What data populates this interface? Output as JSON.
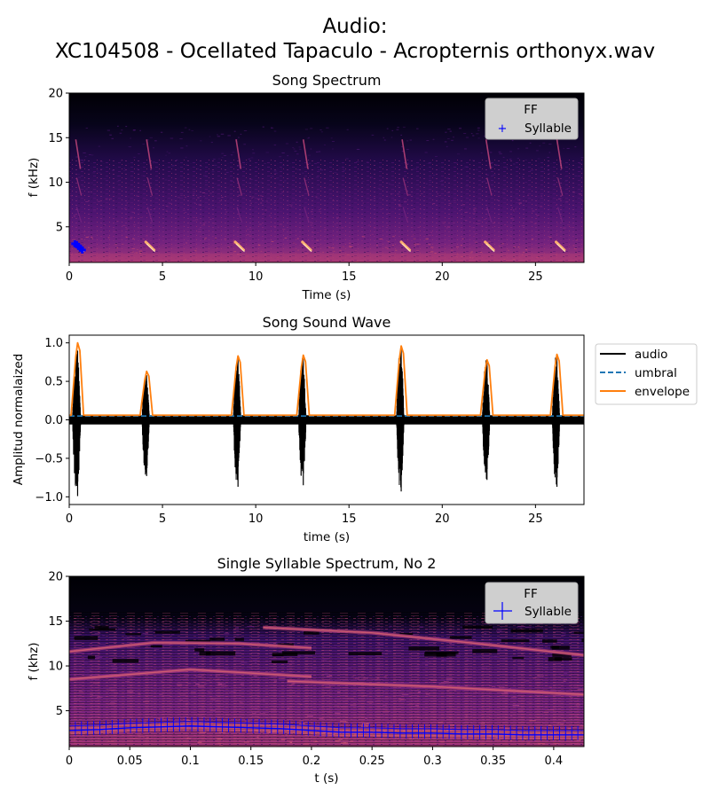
{
  "figure": {
    "title_line1": "Audio:",
    "title_line2": "XC104508 - Ocellated Tapaculo - Acropternis orthonyx.wav"
  },
  "colors": {
    "audio": "#000000",
    "umbral": "#1f77b4",
    "envelope": "#ff7f0e",
    "syllable": "#0000ff",
    "colormap": "magma"
  },
  "chart_data": [
    {
      "type": "heatmap",
      "title": "Song Spectrum",
      "xlabel": "Time (s)",
      "ylabel": "f (kHz)",
      "xlim": [
        0,
        27.6
      ],
      "ylim": [
        1,
        20
      ],
      "xticks": [
        0,
        5,
        10,
        15,
        20,
        25
      ],
      "yticks": [
        5,
        10,
        15,
        20
      ],
      "legend": {
        "title": "FF",
        "entries": [
          "Syllable"
        ],
        "placement": "upper right"
      },
      "syllable_onsets_s": [
        0.3,
        4.1,
        8.9,
        12.5,
        17.8,
        22.3,
        26.1
      ],
      "syllable_points": {
        "t": [
          0.3,
          0.4,
          0.5,
          0.6,
          0.7
        ],
        "f_khz": [
          3.1,
          3.0,
          2.8,
          2.6,
          2.4
        ]
      }
    },
    {
      "type": "line",
      "title": "Song Sound Wave",
      "xlabel": "time (s)",
      "ylabel": "Amplitud normalaized",
      "xlim": [
        0,
        27.6
      ],
      "ylim": [
        -1.1,
        1.1
      ],
      "xticks": [
        0,
        5,
        10,
        15,
        20,
        25
      ],
      "yticks": [
        -1.0,
        -0.5,
        0.0,
        0.5,
        1.0
      ],
      "ytick_labels": [
        "−1.0",
        "−0.5",
        "0.0",
        "0.5",
        "1.0"
      ],
      "legend": {
        "placement": "outside upper right"
      },
      "series": [
        {
          "name": "audio",
          "style": "solid",
          "syllables": [
            {
              "t": 0.45,
              "pos": 0.9,
              "neg": -0.99,
              "w": 0.55
            },
            {
              "t": 4.15,
              "pos": 0.58,
              "neg": -0.73,
              "w": 0.5
            },
            {
              "t": 9.05,
              "pos": 0.8,
              "neg": -0.87,
              "w": 0.5
            },
            {
              "t": 12.55,
              "pos": 0.8,
              "neg": -0.85,
              "w": 0.5
            },
            {
              "t": 17.8,
              "pos": 0.96,
              "neg": -0.93,
              "w": 0.5
            },
            {
              "t": 22.4,
              "pos": 0.78,
              "neg": -0.78,
              "w": 0.5
            },
            {
              "t": 26.15,
              "pos": 0.85,
              "neg": -0.87,
              "w": 0.5
            }
          ],
          "noise_floor": 0.06
        },
        {
          "name": "umbral",
          "style": "dashed",
          "value": 0.05
        },
        {
          "name": "envelope",
          "style": "solid",
          "baseline": 0.06,
          "peaks": [
            1.0,
            0.63,
            0.83,
            0.84,
            0.96,
            0.78,
            0.85
          ]
        }
      ]
    },
    {
      "type": "heatmap",
      "title": "Single Syllable Spectrum, No 2",
      "xlabel": "t (s)",
      "ylabel": "f (khz)",
      "xlim": [
        0,
        0.425
      ],
      "ylim": [
        1,
        20
      ],
      "xticks": [
        0,
        0.05,
        0.1,
        0.15,
        0.2,
        0.25,
        0.3,
        0.35,
        0.4
      ],
      "yticks": [
        5,
        10,
        15,
        20
      ],
      "legend": {
        "title": "FF",
        "entries": [
          "Syllable"
        ],
        "placement": "upper right"
      },
      "ff_track": {
        "t": [
          0,
          0.025,
          0.05,
          0.075,
          0.1,
          0.125,
          0.15,
          0.175,
          0.2,
          0.225,
          0.25,
          0.275,
          0.3,
          0.325,
          0.35,
          0.375,
          0.4,
          0.425
        ],
        "f_khz": [
          2.8,
          2.9,
          3.1,
          3.2,
          3.3,
          3.2,
          3.1,
          3.0,
          2.8,
          2.6,
          2.6,
          2.5,
          2.5,
          2.4,
          2.4,
          2.3,
          2.3,
          2.3
        ]
      },
      "harmonics": [
        {
          "t": [
            0,
            0.07,
            0.14,
            0.2
          ],
          "f_khz": [
            11.6,
            12.6,
            12.5,
            12.0
          ]
        },
        {
          "t": [
            0.16,
            0.25,
            0.33,
            0.425
          ],
          "f_khz": [
            14.3,
            13.7,
            12.6,
            11.2
          ]
        },
        {
          "t": [
            0,
            0.1,
            0.2
          ],
          "f_khz": [
            8.5,
            9.6,
            8.8
          ]
        },
        {
          "t": [
            0.18,
            0.3,
            0.425
          ],
          "f_khz": [
            8.3,
            7.7,
            6.8
          ]
        }
      ]
    }
  ]
}
